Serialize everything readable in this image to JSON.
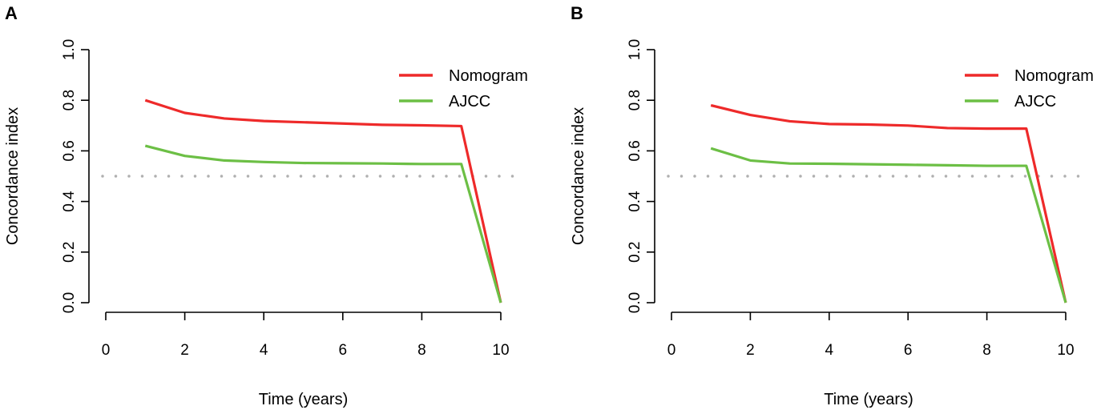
{
  "chart_data": [
    {
      "type": "line",
      "panel_label": "A",
      "xlabel": "Time (years)",
      "ylabel": "Concordance index",
      "xlim": [
        0,
        10
      ],
      "ylim": [
        0,
        1
      ],
      "xticks": [
        "0",
        "2",
        "4",
        "6",
        "8",
        "10"
      ],
      "yticks": [
        "0.0",
        "0.2",
        "0.4",
        "0.6",
        "0.8",
        "1.0"
      ],
      "reference_line": {
        "y": 0.5,
        "style": "dotted",
        "color": "#b0b0b0"
      },
      "legend_position": "top-right",
      "x": [
        1,
        2,
        3,
        4,
        5,
        6,
        7,
        8,
        9,
        10
      ],
      "series": [
        {
          "name": "Nomogram",
          "color": "#ee2a2a",
          "values": [
            0.8,
            0.75,
            0.728,
            0.718,
            0.713,
            0.708,
            0.703,
            0.701,
            0.698,
            0.0
          ]
        },
        {
          "name": "AJCC",
          "color": "#6cbf45",
          "values": [
            0.62,
            0.58,
            0.562,
            0.556,
            0.552,
            0.551,
            0.55,
            0.548,
            0.548,
            0.0
          ]
        }
      ]
    },
    {
      "type": "line",
      "panel_label": "B",
      "xlabel": "Time (years)",
      "ylabel": "Concordance index",
      "xlim": [
        0,
        10
      ],
      "ylim": [
        0,
        1
      ],
      "xticks": [
        "0",
        "2",
        "4",
        "6",
        "8",
        "10"
      ],
      "yticks": [
        "0.0",
        "0.2",
        "0.4",
        "0.6",
        "0.8",
        "1.0"
      ],
      "reference_line": {
        "y": 0.5,
        "style": "dotted",
        "color": "#b0b0b0"
      },
      "legend_position": "top-right",
      "x": [
        1,
        2,
        3,
        4,
        5,
        6,
        7,
        8,
        9,
        10
      ],
      "series": [
        {
          "name": "Nomogram",
          "color": "#ee2a2a",
          "values": [
            0.78,
            0.742,
            0.717,
            0.706,
            0.704,
            0.7,
            0.69,
            0.688,
            0.688,
            0.0
          ]
        },
        {
          "name": "AJCC",
          "color": "#6cbf45",
          "values": [
            0.61,
            0.562,
            0.55,
            0.549,
            0.547,
            0.545,
            0.543,
            0.541,
            0.541,
            0.0
          ]
        }
      ]
    }
  ]
}
